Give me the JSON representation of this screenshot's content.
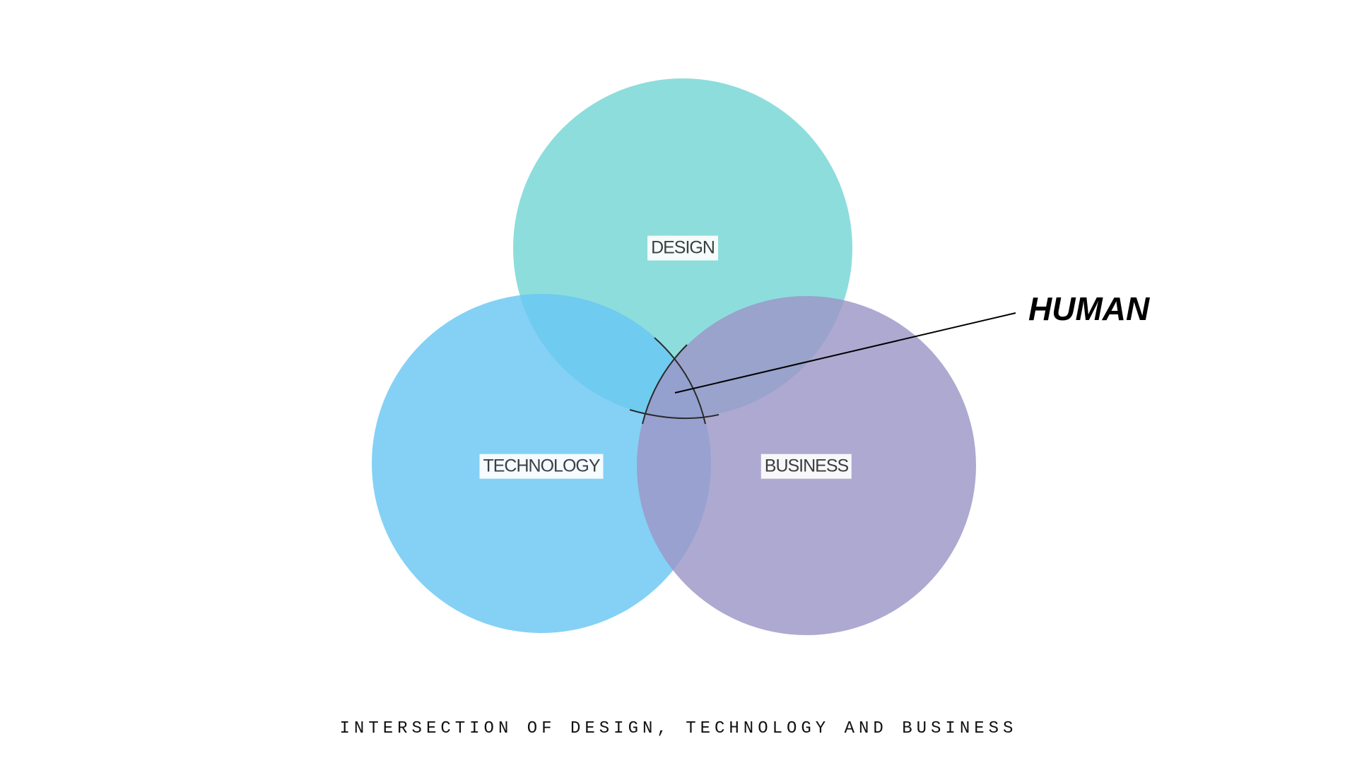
{
  "diagram": {
    "circles": [
      {
        "id": "design",
        "label": "DESIGN",
        "color": "#74D6D4"
      },
      {
        "id": "technology",
        "label": "TECHNOLOGY",
        "color": "#69C7F3"
      },
      {
        "id": "business",
        "label": "BUSINESS",
        "color": "#9C96C7"
      }
    ],
    "intersection": {
      "label": "HUMAN"
    }
  },
  "caption": "INTERSECTION OF DESIGN, TECHNOLOGY AND BUSINESS"
}
